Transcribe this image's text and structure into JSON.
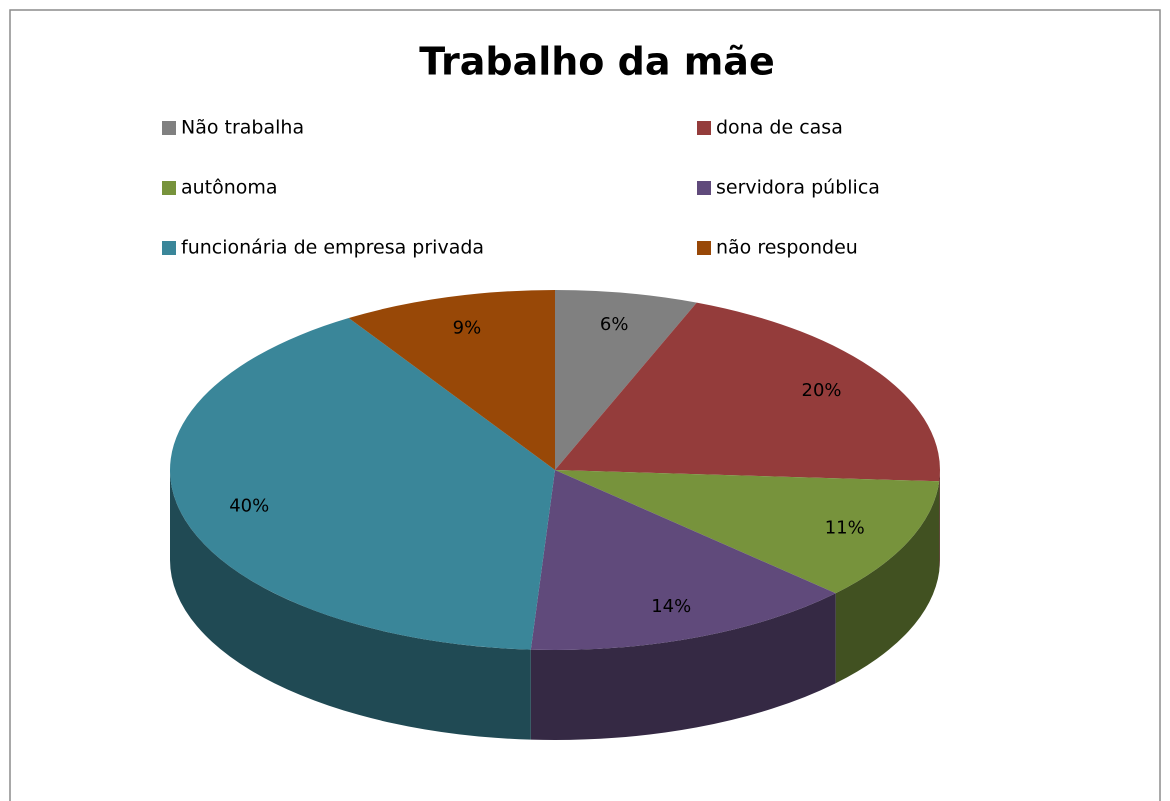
{
  "chart_data": {
    "type": "pie3d",
    "title": "Trabalho da mãe",
    "categories": [
      "Não trabalha",
      "dona de casa",
      "autônoma",
      "servidora pública",
      "funcionária de empresa privada",
      "não respondeu"
    ],
    "values": [
      6,
      20,
      11,
      14,
      40,
      9
    ],
    "value_labels": [
      "6%",
      "20%",
      "11%",
      "14%",
      "40%",
      "9%"
    ],
    "colors": [
      "#808080",
      "#943c3b",
      "#77933c",
      "#604a7b",
      "#3a8699",
      "#984807"
    ],
    "legend": "top"
  }
}
